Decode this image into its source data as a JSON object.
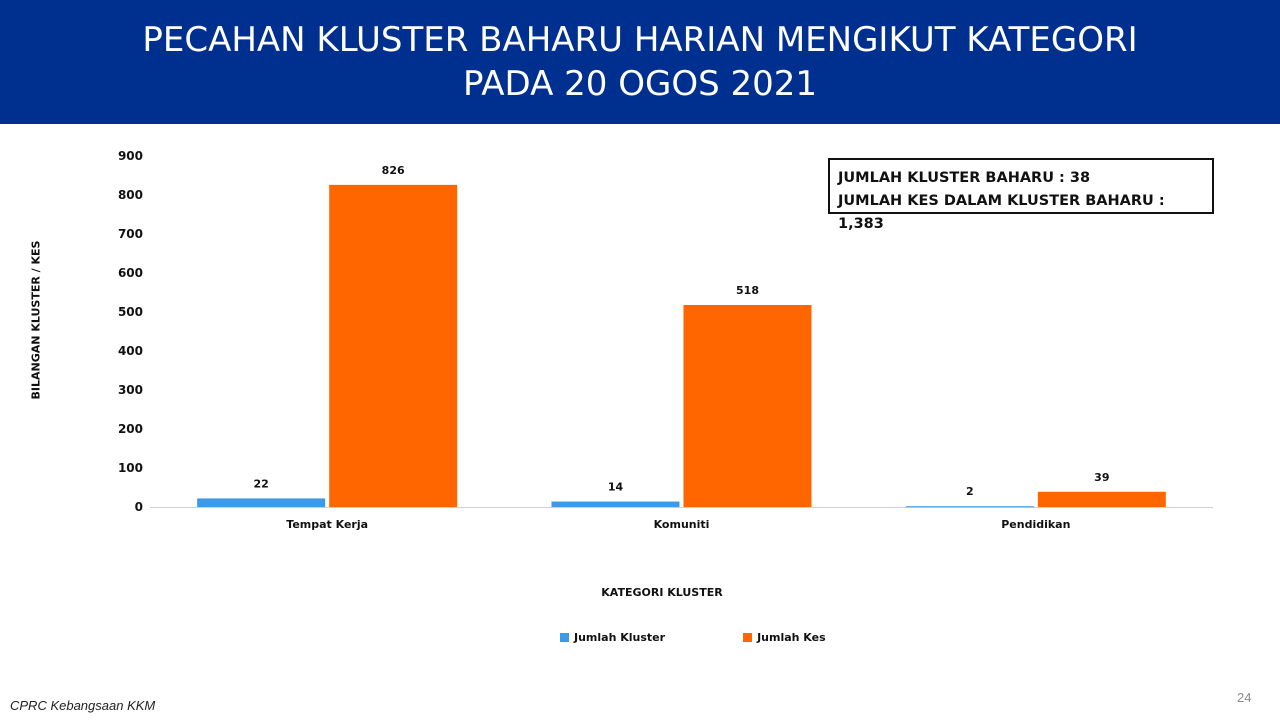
{
  "header": {
    "title_line1": "PECAHAN KLUSTER BAHARU HARIAN MENGIKUT KATEGORI",
    "title_line2": "PADA 20 OGOS 2021"
  },
  "summary": {
    "line1": "JUMLAH KLUSTER BAHARU : 38",
    "line2": "JUMLAH KES DALAM KLUSTER BAHARU : 1,383"
  },
  "chart_data": {
    "type": "bar",
    "categories": [
      "Tempat Kerja",
      "Komuniti",
      "Pendidikan"
    ],
    "series": [
      {
        "name": "Jumlah Kluster",
        "values": [
          22,
          14,
          2
        ],
        "color": "#3d9ae8"
      },
      {
        "name": "Jumlah Kes",
        "values": [
          826,
          518,
          39
        ],
        "color": "#ff6600"
      }
    ],
    "xlabel": "KATEGORI KLUSTER",
    "ylabel": "BILANGAN KLUSTER / KES",
    "ylim": [
      0,
      900
    ],
    "yticks": [
      0,
      100,
      200,
      300,
      400,
      500,
      600,
      700,
      800,
      900
    ],
    "grid": false,
    "legend": "bottom",
    "data_labels": true
  },
  "footer": {
    "source": "CPRC Kebangsaan KKM",
    "page_number": "24"
  }
}
